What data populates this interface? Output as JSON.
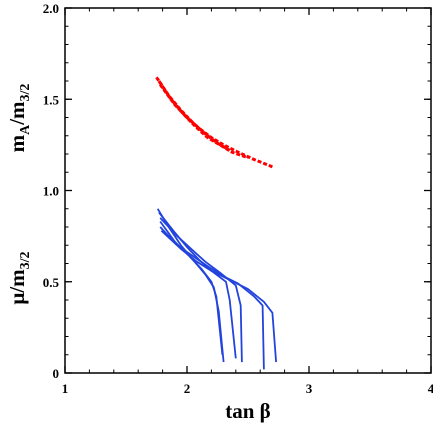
{
  "chart_data": {
    "type": "line",
    "xlim": [
      1,
      4
    ],
    "x_ticks": [
      1,
      2,
      3,
      4
    ],
    "x_tick_labels": [
      "1",
      "2",
      "3",
      "4"
    ],
    "y_ticks": [
      0,
      0.5,
      1.0,
      1.5,
      2.0
    ],
    "y_tick_labels": [
      "0",
      "0.5",
      "1.0",
      "1.5",
      "2.0"
    ],
    "ylim": [
      0,
      2.0
    ],
    "grid": false,
    "legend": "none",
    "xlabel": {
      "main": "tan ",
      "greek": "β"
    },
    "ylabel_upper": {
      "main": "m",
      "sub": "A",
      "mid": "/m",
      "sub2": "3/2"
    },
    "ylabel_lower": {
      "main": "μ/m",
      "sub": "3/2"
    },
    "series": [
      {
        "group": "mA",
        "color": "#ff0000",
        "dashed": true,
        "points": [
          [
            1.75,
            1.62
          ],
          [
            1.85,
            1.52
          ],
          [
            1.95,
            1.44
          ],
          [
            2.05,
            1.37
          ],
          [
            2.15,
            1.31
          ],
          [
            2.25,
            1.26
          ],
          [
            2.35,
            1.22
          ]
        ]
      },
      {
        "group": "mA",
        "color": "#ff0000",
        "dashed": true,
        "points": [
          [
            1.77,
            1.6
          ],
          [
            1.87,
            1.5
          ],
          [
            1.97,
            1.42
          ],
          [
            2.07,
            1.35
          ],
          [
            2.17,
            1.29
          ],
          [
            2.27,
            1.25
          ],
          [
            2.37,
            1.21
          ],
          [
            2.5,
            1.18
          ]
        ]
      },
      {
        "group": "mA",
        "color": "#ff0000",
        "dashed": true,
        "points": [
          [
            1.78,
            1.58
          ],
          [
            1.9,
            1.47
          ],
          [
            2.0,
            1.4
          ],
          [
            2.1,
            1.34
          ],
          [
            2.2,
            1.29
          ],
          [
            2.3,
            1.25
          ],
          [
            2.42,
            1.21
          ],
          [
            2.55,
            1.17
          ],
          [
            2.7,
            1.13
          ]
        ]
      },
      {
        "group": "mu",
        "color": "#2244dd",
        "dashed": false,
        "points": [
          [
            1.76,
            0.9
          ],
          [
            1.85,
            0.8
          ],
          [
            1.95,
            0.7
          ],
          [
            2.05,
            0.62
          ],
          [
            2.15,
            0.54
          ],
          [
            2.22,
            0.47
          ],
          [
            2.26,
            0.34
          ],
          [
            2.3,
            0.06
          ]
        ]
      },
      {
        "group": "mu",
        "color": "#2244dd",
        "dashed": false,
        "points": [
          [
            1.77,
            0.88
          ],
          [
            1.9,
            0.77
          ],
          [
            2.0,
            0.69
          ],
          [
            2.1,
            0.62
          ],
          [
            2.2,
            0.56
          ],
          [
            2.32,
            0.5
          ],
          [
            2.35,
            0.4
          ],
          [
            2.4,
            0.08
          ]
        ]
      },
      {
        "group": "mu",
        "color": "#2244dd",
        "dashed": false,
        "points": [
          [
            1.78,
            0.85
          ],
          [
            1.92,
            0.75
          ],
          [
            2.05,
            0.67
          ],
          [
            2.15,
            0.61
          ],
          [
            2.27,
            0.55
          ],
          [
            2.4,
            0.48
          ],
          [
            2.44,
            0.37
          ],
          [
            2.45,
            0.06
          ]
        ]
      },
      {
        "group": "mu",
        "color": "#2244dd",
        "dashed": false,
        "points": [
          [
            1.78,
            0.8
          ],
          [
            1.92,
            0.7
          ],
          [
            2.05,
            0.64
          ],
          [
            2.18,
            0.58
          ],
          [
            2.3,
            0.53
          ],
          [
            2.42,
            0.49
          ],
          [
            2.55,
            0.42
          ],
          [
            2.62,
            0.37
          ],
          [
            2.63,
            0.02
          ]
        ]
      },
      {
        "group": "mu",
        "color": "#2244dd",
        "dashed": false,
        "points": [
          [
            1.79,
            0.78
          ],
          [
            1.95,
            0.68
          ],
          [
            2.08,
            0.61
          ],
          [
            2.2,
            0.56
          ],
          [
            2.35,
            0.51
          ],
          [
            2.5,
            0.46
          ],
          [
            2.63,
            0.39
          ],
          [
            2.7,
            0.33
          ],
          [
            2.73,
            0.06
          ]
        ]
      },
      {
        "group": "mu",
        "color": "#2244dd",
        "dashed": false,
        "points": [
          [
            1.78,
            0.83
          ],
          [
            1.9,
            0.72
          ],
          [
            2.02,
            0.64
          ],
          [
            2.12,
            0.57
          ],
          [
            2.2,
            0.5
          ],
          [
            2.24,
            0.42
          ],
          [
            2.29,
            0.1
          ]
        ]
      }
    ]
  }
}
